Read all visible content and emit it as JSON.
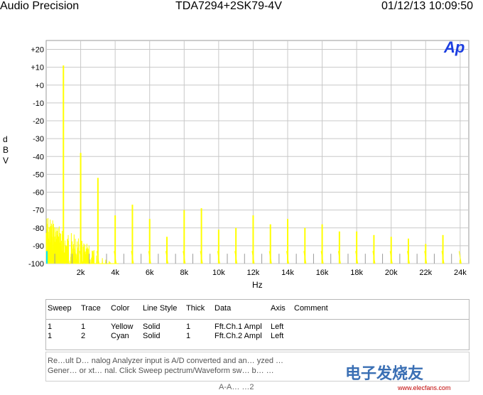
{
  "header": {
    "brand": "Audio Precision",
    "title": "TDA7294+2SK79-4V",
    "datetime": "01/12/13 10:09:50"
  },
  "logo": {
    "text": "Ap",
    "color": "#1c3ee0"
  },
  "chart_data": {
    "type": "line",
    "title": "TDA7294+2SK79-4V",
    "xlabel": "Hz",
    "ylabel": "dBV",
    "xlim": [
      0,
      24500
    ],
    "ylim": [
      -100,
      25
    ],
    "grid": true,
    "x_ticks": [
      2000,
      4000,
      6000,
      8000,
      10000,
      12000,
      14000,
      16000,
      18000,
      20000,
      22000,
      24000
    ],
    "x_tick_labels": [
      "2k",
      "4k",
      "6k",
      "8k",
      "10k",
      "12k",
      "14k",
      "16k",
      "18k",
      "20k",
      "22k",
      "24k"
    ],
    "y_ticks": [
      20,
      10,
      0,
      -10,
      -20,
      -30,
      -40,
      -50,
      -60,
      -70,
      -80,
      -90,
      -100
    ],
    "y_tick_labels": [
      "+20",
      "+10",
      "+0",
      "-10",
      "-20",
      "-30",
      "-40",
      "-50",
      "-60",
      "-70",
      "-80",
      "-90",
      "-100"
    ],
    "series": [
      {
        "name": "Fft.Ch.1 Ampl",
        "color": "#ffff00",
        "harmonics": [
          {
            "x": 1000,
            "y": 11
          },
          {
            "x": 2000,
            "y": -38
          },
          {
            "x": 3000,
            "y": -52
          },
          {
            "x": 4000,
            "y": -73
          },
          {
            "x": 5000,
            "y": -67
          },
          {
            "x": 6000,
            "y": -75
          },
          {
            "x": 7000,
            "y": -85
          },
          {
            "x": 8000,
            "y": -70
          },
          {
            "x": 9000,
            "y": -69
          },
          {
            "x": 10000,
            "y": -81
          },
          {
            "x": 11000,
            "y": -80
          },
          {
            "x": 12000,
            "y": -73
          },
          {
            "x": 13000,
            "y": -78
          },
          {
            "x": 14000,
            "y": -75
          },
          {
            "x": 15000,
            "y": -80
          },
          {
            "x": 16000,
            "y": -78
          },
          {
            "x": 17000,
            "y": -82
          },
          {
            "x": 18000,
            "y": -82
          },
          {
            "x": 19000,
            "y": -84
          },
          {
            "x": 20000,
            "y": -85
          },
          {
            "x": 21000,
            "y": -86
          },
          {
            "x": 22000,
            "y": -89
          },
          {
            "x": 23000,
            "y": -84
          },
          {
            "x": 24000,
            "y": -98
          }
        ]
      },
      {
        "name": "Fft.Ch.2 Ampl",
        "color": "#00e5ff",
        "harmonics": []
      }
    ]
  },
  "legend": {
    "headers": [
      "Sweep",
      "Trace",
      "Color",
      "Line Style",
      "Thick",
      "Data",
      "Axis",
      "Comment"
    ],
    "rows": [
      [
        "1",
        "1",
        "Yellow",
        "Solid",
        "1",
        "Fft.Ch.1 Ampl",
        "Left",
        ""
      ],
      [
        "1",
        "2",
        "Cyan",
        "Solid",
        "1",
        "Fft.Ch.2 Ampl",
        "Left",
        ""
      ]
    ]
  },
  "notes": {
    "line1": "Re…ult D… nalog Analyzer input is A/D converted and an… yzed …",
    "line2": "Gener… or xt… nal. Click Sweep  pectrum/Waveform  sw…  b…  …"
  },
  "footer": {
    "text": "A-A…  …2"
  },
  "watermark": {
    "text": "电子发烧友",
    "sub": "www.elecfans.com"
  }
}
